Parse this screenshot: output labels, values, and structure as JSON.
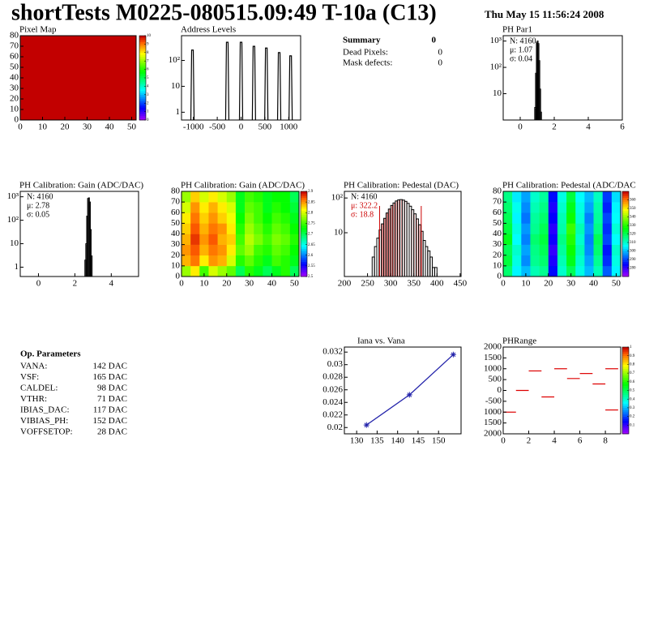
{
  "header": {
    "title": "shortTests M0225-080515.09:49 T-10a (C13)",
    "date": "Thu May 15 11:56:24 2008"
  },
  "summary": {
    "title": "Summary",
    "value": 0,
    "rows": [
      {
        "label": "Dead Pixels:",
        "value": 0
      },
      {
        "label": "Mask defects:",
        "value": 0
      }
    ]
  },
  "op_parameters": {
    "title": "Op. Parameters",
    "rows": [
      [
        "VANA:",
        "142 DAC"
      ],
      [
        "VSF:",
        "165 DAC"
      ],
      [
        "CALDEL:",
        "98 DAC"
      ],
      [
        "VTHR:",
        "71 DAC"
      ],
      [
        "IBIAS_DAC:",
        "117 DAC"
      ],
      [
        "VIBIAS_PH:",
        "152 DAC"
      ],
      [
        "VOFFSETOP:",
        "28 DAC"
      ]
    ]
  },
  "chart_data": [
    {
      "type": "heatmap",
      "title": "Pixel Map",
      "xlim": [
        0,
        52
      ],
      "ylim": [
        0,
        80
      ],
      "xticks": [
        0,
        10,
        20,
        30,
        40,
        50
      ],
      "yticks": [
        0,
        10,
        20,
        30,
        40,
        50,
        60,
        70,
        80
      ],
      "zlim": [
        0,
        10
      ],
      "zticks": [
        0,
        1,
        2,
        3,
        4,
        5,
        6,
        7,
        8,
        9,
        10
      ],
      "z": [
        [
          10
        ]
      ]
    },
    {
      "type": "peaks",
      "title": "Address Levels",
      "logy": true,
      "xlim": [
        -1250,
        1250
      ],
      "ylim": [
        0.5,
        900
      ],
      "xticks": [
        -1000,
        -500,
        0,
        500,
        1000
      ],
      "yticks": [
        1,
        10,
        {
          "value": 100,
          "label": "10²"
        }
      ],
      "x": [
        -1020,
        -290,
        0,
        270,
        530,
        800,
        1040
      ],
      "values": [
        250,
        500,
        500,
        350,
        300,
        200,
        150
      ],
      "color": "#000000"
    },
    {
      "type": "histogram",
      "title": "PH Par1",
      "logy": true,
      "xlim": [
        -1,
        6
      ],
      "ylim": [
        1,
        1600
      ],
      "xticks": [
        0,
        2,
        4,
        6
      ],
      "yticks": [
        10,
        {
          "value": 100,
          "label": "10²"
        },
        {
          "value": 1000,
          "label": "10³"
        }
      ],
      "bins": [
        0.85,
        0.9,
        0.95,
        1.0,
        1.05,
        1.1,
        1.15,
        1.2,
        1.25
      ],
      "values": [
        3,
        60,
        900,
        1000,
        800,
        180,
        15,
        2
      ],
      "color": "#000000",
      "stats": [
        "N: 4160",
        "μ: 1.07",
        "σ: 0.04"
      ],
      "stats_colors": [
        "#000000",
        "#000000",
        "#000000"
      ]
    },
    {
      "type": "histogram",
      "title": "PH Calibration: Gain (ADC/DAC)",
      "logy": true,
      "xlim": [
        -1,
        5.5
      ],
      "ylim": [
        0.4,
        1700
      ],
      "xticks": [
        0,
        2,
        4
      ],
      "yticks": [
        1,
        10,
        {
          "value": 100,
          "label": "10²"
        },
        {
          "value": 1000,
          "label": "10³"
        }
      ],
      "bins": [
        2.55,
        2.6,
        2.65,
        2.7,
        2.75,
        2.8,
        2.85,
        2.9,
        2.95
      ],
      "values": [
        2,
        10,
        150,
        850,
        900,
        600,
        40,
        3
      ],
      "color": "#000000",
      "stats": [
        "N: 4160",
        "μ: 2.78",
        "σ: 0.05"
      ],
      "stats_colors": [
        "#000000",
        "#000000",
        "#000000"
      ]
    },
    {
      "type": "heatmap",
      "title": "PH Calibration: Gain (ADC/DAC)",
      "xlim": [
        0,
        52
      ],
      "ylim": [
        0,
        80
      ],
      "xticks": [
        0,
        10,
        20,
        30,
        40,
        50
      ],
      "yticks": [
        0,
        10,
        20,
        30,
        40,
        50,
        60,
        70,
        80
      ],
      "zlim": [
        2.5,
        2.9
      ],
      "zticks": [
        2.5,
        2.55,
        2.6,
        2.65,
        2.7,
        2.75,
        2.8,
        2.85,
        2.9
      ],
      "z": [
        [
          2.78,
          2.82,
          2.75,
          2.8,
          2.78,
          2.76,
          2.7,
          2.74,
          2.72,
          2.7,
          2.72,
          2.74,
          2.7
        ],
        [
          2.84,
          2.86,
          2.82,
          2.85,
          2.84,
          2.8,
          2.74,
          2.76,
          2.74,
          2.72,
          2.75,
          2.74,
          2.72
        ],
        [
          2.85,
          2.87,
          2.84,
          2.86,
          2.85,
          2.82,
          2.76,
          2.78,
          2.75,
          2.74,
          2.76,
          2.75,
          2.73
        ],
        [
          2.84,
          2.88,
          2.85,
          2.87,
          2.84,
          2.83,
          2.75,
          2.79,
          2.77,
          2.75,
          2.77,
          2.76,
          2.74
        ],
        [
          2.83,
          2.87,
          2.84,
          2.86,
          2.85,
          2.82,
          2.74,
          2.78,
          2.76,
          2.74,
          2.76,
          2.75,
          2.73
        ],
        [
          2.82,
          2.86,
          2.83,
          2.85,
          2.83,
          2.81,
          2.73,
          2.77,
          2.75,
          2.73,
          2.75,
          2.74,
          2.72
        ],
        [
          2.8,
          2.85,
          2.82,
          2.84,
          2.82,
          2.8,
          2.72,
          2.76,
          2.75,
          2.72,
          2.74,
          2.73,
          2.71
        ],
        [
          2.78,
          2.83,
          2.8,
          2.82,
          2.8,
          2.78,
          2.72,
          2.75,
          2.74,
          2.72,
          2.73,
          2.73,
          2.7
        ]
      ]
    },
    {
      "type": "histogram",
      "title": "PH Calibration: Pedestal (DAC)",
      "logy": true,
      "xlim": [
        200,
        452
      ],
      "ylim": [
        0.55,
        155
      ],
      "xticks": [
        200,
        250,
        300,
        350,
        400,
        450
      ],
      "yticks": [
        10,
        {
          "value": 100,
          "label": "10²"
        }
      ],
      "bins": [
        260,
        265,
        270,
        275,
        280,
        285,
        290,
        295,
        300,
        305,
        310,
        315,
        320,
        325,
        330,
        335,
        340,
        345,
        350,
        355,
        360,
        365,
        370,
        375,
        380,
        385,
        390,
        395,
        400
      ],
      "values": [
        2,
        4,
        7,
        12,
        18,
        26,
        37,
        48,
        61,
        72,
        82,
        88,
        90,
        87,
        80,
        70,
        58,
        46,
        35,
        25,
        17,
        11,
        6,
        4,
        3,
        2,
        1,
        1
      ],
      "color": "#000000",
      "fill_color": "#cc0000",
      "cut_lines": [
        276,
        366
      ],
      "stats": [
        "N: 4160",
        "μ: 322.2",
        "σ: 18.8"
      ],
      "stats_colors": [
        "#000000",
        "#cc0000",
        "#cc0000"
      ]
    },
    {
      "type": "heatmap",
      "title": "PH Calibration: Pedestal (ADC/DAC",
      "xlim": [
        0,
        52
      ],
      "ylim": [
        0,
        80
      ],
      "xticks": [
        0,
        10,
        20,
        30,
        40,
        50
      ],
      "yticks": [
        0,
        10,
        20,
        30,
        40,
        50,
        60,
        70,
        80
      ],
      "zlim": [
        270,
        370
      ],
      "zticks": [
        280,
        290,
        300,
        310,
        320,
        330,
        340,
        350,
        360
      ],
      "z": [
        [
          318,
          305,
          300,
          312,
          315,
          285,
          310,
          320,
          308,
          300,
          312,
          292,
          305
        ],
        [
          322,
          308,
          296,
          315,
          318,
          282,
          312,
          325,
          310,
          298,
          315,
          288,
          308
        ],
        [
          320,
          310,
          298,
          316,
          320,
          280,
          314,
          328,
          312,
          296,
          318,
          286,
          310
        ],
        [
          325,
          306,
          295,
          318,
          322,
          283,
          316,
          330,
          310,
          295,
          320,
          290,
          306
        ],
        [
          322,
          308,
          297,
          315,
          320,
          281,
          313,
          332,
          312,
          297,
          316,
          288,
          309
        ],
        [
          320,
          305,
          294,
          314,
          318,
          284,
          312,
          328,
          309,
          295,
          314,
          290,
          306
        ],
        [
          318,
          307,
          296,
          312,
          316,
          282,
          310,
          325,
          308,
          298,
          313,
          287,
          305
        ],
        [
          316,
          304,
          298,
          310,
          314,
          285,
          308,
          322,
          306,
          300,
          311,
          289,
          303
        ]
      ]
    },
    {
      "type": "line",
      "title": "Iana vs. Vana",
      "xlim": [
        127,
        155.5
      ],
      "ylim": [
        0.019,
        0.0328
      ],
      "xticks": [
        130,
        135,
        140,
        145,
        150
      ],
      "yticks": [
        0.02,
        0.022,
        0.024,
        0.026,
        0.028,
        0.03,
        0.032
      ],
      "x": [
        132.4,
        142.9,
        153.6
      ],
      "values": [
        0.0204,
        0.0252,
        0.0316
      ],
      "color": "#2222aa"
    },
    {
      "type": "dash",
      "title": "PHRange",
      "xlim": [
        0,
        9.2
      ],
      "ylim": [
        -2000,
        2000
      ],
      "xticks": [
        0,
        2,
        4,
        6,
        8
      ],
      "yticks": [
        {
          "value": -2000,
          "label": "2000"
        },
        {
          "value": -1500,
          "label": "1500"
        },
        {
          "value": -1000,
          "label": "1000"
        },
        -500,
        0,
        500,
        1000,
        1500,
        2000
      ],
      "zlim": [
        0,
        1
      ],
      "zticks": [
        0.1,
        0.2,
        0.3,
        0.4,
        0.5,
        0.6,
        0.7,
        0.8,
        0.9,
        1
      ],
      "x": [
        0.5,
        1.5,
        2.5,
        3.5,
        4.5,
        5.5,
        6.5,
        7.5,
        8.5,
        8.5
      ],
      "values": [
        -1000,
        0,
        900,
        -300,
        1000,
        550,
        780,
        300,
        1000,
        -900
      ],
      "color": "#dd0000"
    }
  ]
}
